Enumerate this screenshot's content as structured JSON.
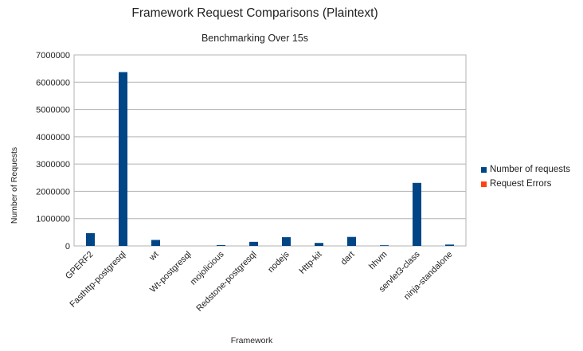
{
  "chart_data": {
    "type": "bar",
    "title": "Framework Request Comparisons (Plaintext)",
    "subtitle": "Benchmarking Over 15s",
    "xlabel": "Framework",
    "ylabel": "Number of Requests",
    "ylim": [
      0,
      7000000
    ],
    "yticks": [
      0,
      1000000,
      2000000,
      3000000,
      4000000,
      5000000,
      6000000,
      7000000
    ],
    "grid": true,
    "legend_position": "right",
    "categories": [
      "GPERF2",
      "Fasthttp-postgresql",
      "wt",
      "Wt-postgresql",
      "mojolicious",
      "Redstone-postgresql",
      "nodejs",
      "Http-kit",
      "dart",
      "hhvm",
      "servlet3-class",
      "ninja-standalone"
    ],
    "series": [
      {
        "name": "Number of requests",
        "color": "#004586",
        "values": [
          470000,
          6370000,
          220000,
          0,
          30000,
          150000,
          320000,
          110000,
          330000,
          25000,
          2310000,
          50000
        ]
      },
      {
        "name": "Request Errors",
        "color": "#ff420e",
        "values": [
          0,
          0,
          0,
          0,
          0,
          0,
          0,
          0,
          0,
          0,
          0,
          0
        ]
      }
    ]
  }
}
